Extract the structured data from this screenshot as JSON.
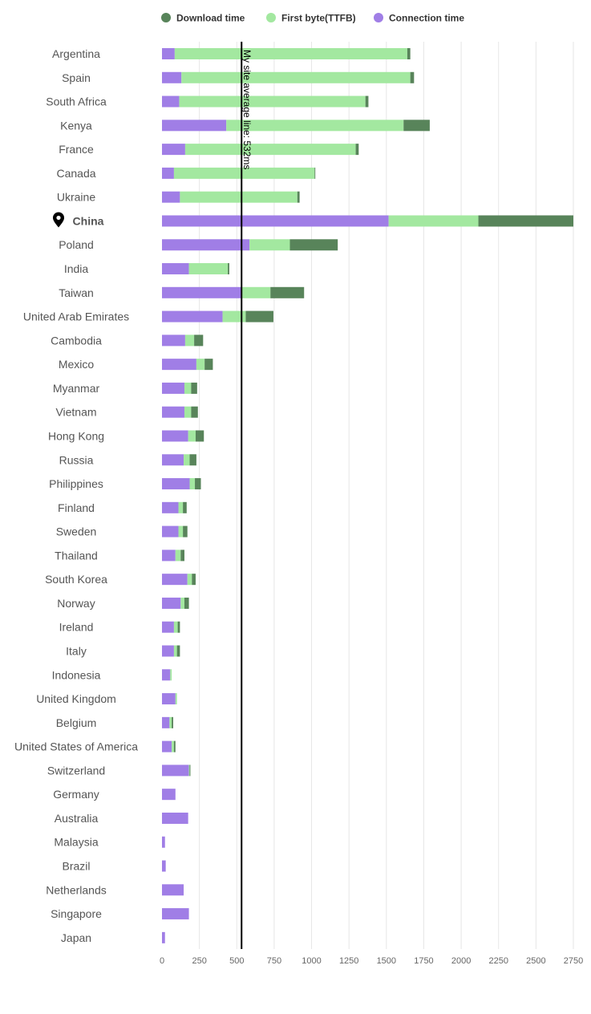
{
  "chart_data": {
    "type": "bar",
    "orientation": "horizontal",
    "stacked": true,
    "title": "",
    "xlabel": "",
    "ylabel": "",
    "xlim": [
      0,
      2750
    ],
    "xticks": [
      0,
      250,
      500,
      750,
      1000,
      1250,
      1500,
      1750,
      2000,
      2250,
      2500,
      2750
    ],
    "grid": true,
    "legend_position": "top",
    "highlight_category": "China",
    "categories": [
      "Argentina",
      "Spain",
      "South Africa",
      "Kenya",
      "France",
      "Canada",
      "Ukraine",
      "China",
      "Poland",
      "India",
      "Taiwan",
      "United Arab Emirates",
      "Cambodia",
      "Mexico",
      "Myanmar",
      "Vietnam",
      "Hong Kong",
      "Russia",
      "Philippines",
      "Finland",
      "Sweden",
      "Thailand",
      "South Korea",
      "Norway",
      "Ireland",
      "Italy",
      "Indonesia",
      "United Kingdom",
      "Belgium",
      "United States of America",
      "Switzerland",
      "Germany",
      "Australia",
      "Malaysia",
      "Brazil",
      "Netherlands",
      "Singapore",
      "Japan"
    ],
    "series": [
      {
        "name": "Connection time",
        "color": "#a07ee6",
        "values": [
          85,
          130,
          115,
          430,
          155,
          80,
          120,
          1515,
          585,
          180,
          535,
          405,
          155,
          230,
          150,
          150,
          175,
          145,
          185,
          110,
          110,
          90,
          170,
          125,
          80,
          80,
          55,
          90,
          50,
          65,
          180,
          90,
          175,
          20,
          25,
          145,
          180,
          20
        ]
      },
      {
        "name": "First byte(TTFB)",
        "color": "#a3e8a0",
        "values": [
          1555,
          1530,
          1245,
          1185,
          1140,
          940,
          785,
          600,
          270,
          260,
          190,
          155,
          60,
          55,
          45,
          45,
          50,
          40,
          35,
          30,
          30,
          35,
          30,
          25,
          25,
          20,
          10,
          10,
          15,
          15,
          5,
          0,
          0,
          0,
          0,
          0,
          0,
          0
        ]
      },
      {
        "name": "Download time",
        "color": "#58845a",
        "values": [
          20,
          25,
          20,
          175,
          20,
          5,
          15,
          635,
          320,
          10,
          225,
          185,
          60,
          55,
          40,
          45,
          55,
          45,
          40,
          25,
          30,
          25,
          25,
          30,
          15,
          20,
          0,
          0,
          10,
          10,
          5,
          0,
          0,
          0,
          0,
          0,
          0,
          0
        ]
      }
    ],
    "legend_order": [
      "Download time",
      "First byte(TTFB)",
      "Connection time"
    ],
    "reference_line": {
      "value": 532,
      "label": "My site average line: 532ms"
    }
  },
  "icons": {
    "highlight_marker": "map-pin-icon"
  }
}
